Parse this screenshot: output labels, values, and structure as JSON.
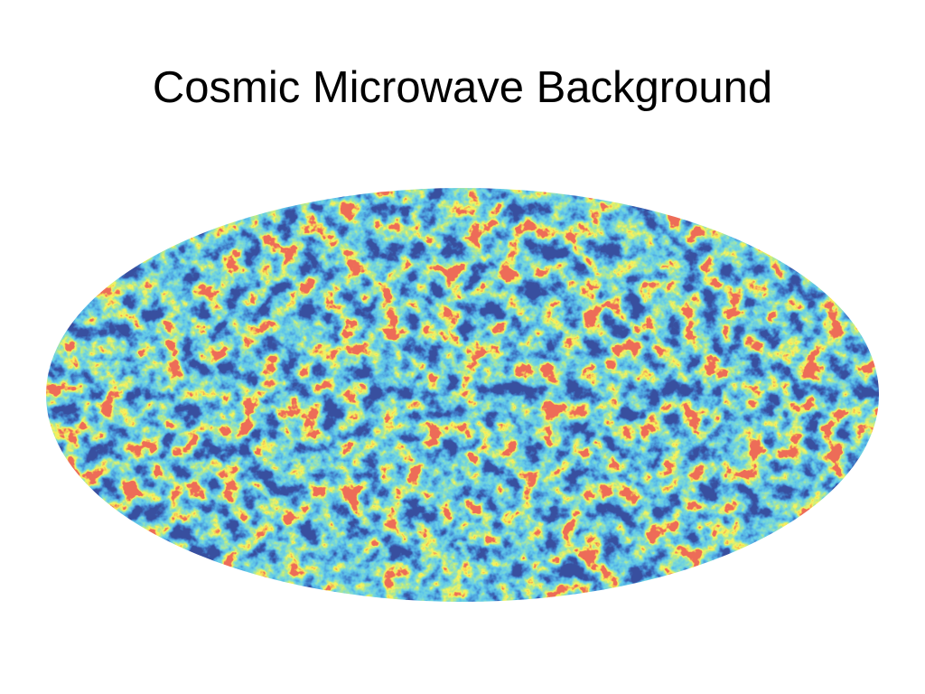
{
  "slide": {
    "title": "Cosmic Microwave Background"
  }
}
